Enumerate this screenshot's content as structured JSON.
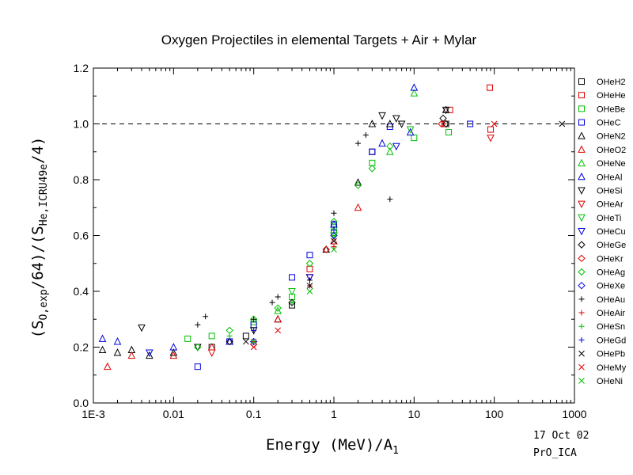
{
  "chart_data": {
    "type": "scatter",
    "title": "Oxygen Projectiles in elemental Targets + Air + Mylar",
    "xlabel": {
      "main": "Energy (MeV)/A",
      "sub": "1"
    },
    "ylabel": {
      "parts": [
        {
          "t": "(S",
          "k": "n"
        },
        {
          "t": "O,exp",
          "k": "sub"
        },
        {
          "t": "/64)/(S",
          "k": "n"
        },
        {
          "t": "He,ICRU49e",
          "k": "sub"
        },
        {
          "t": "/4)",
          "k": "n"
        }
      ]
    },
    "x_scale": "log",
    "xlim": [
      0.001,
      1000
    ],
    "ylim": [
      0.0,
      1.2
    ],
    "x_ticks": [
      {
        "v": 0.001,
        "label": "1E-3"
      },
      {
        "v": 0.01,
        "label": "0.01"
      },
      {
        "v": 0.1,
        "label": "0.1"
      },
      {
        "v": 1,
        "label": "1"
      },
      {
        "v": 10,
        "label": "10"
      },
      {
        "v": 100,
        "label": "100"
      },
      {
        "v": 1000,
        "label": "1000"
      }
    ],
    "y_ticks": [
      {
        "v": 0.0,
        "label": "0.0"
      },
      {
        "v": 0.2,
        "label": "0.2"
      },
      {
        "v": 0.4,
        "label": "0.4"
      },
      {
        "v": 0.6,
        "label": "0.6"
      },
      {
        "v": 0.8,
        "label": "0.8"
      },
      {
        "v": 1.0,
        "label": "1.0"
      },
      {
        "v": 1.2,
        "label": "1.2"
      }
    ],
    "reference_line": {
      "y": 1.0,
      "style": "dashed"
    },
    "legend_position": "right",
    "series": [
      {
        "name": "OHeH2",
        "marker": "square",
        "color": "#000000",
        "points": [
          [
            0.03,
            0.2
          ],
          [
            0.08,
            0.24
          ],
          [
            0.3,
            0.35
          ],
          [
            1.0,
            0.62
          ],
          [
            3.0,
            0.9
          ],
          [
            25,
            1.0
          ]
        ]
      },
      {
        "name": "OHeHe",
        "marker": "square",
        "color": "#e00000",
        "points": [
          [
            0.5,
            0.48
          ],
          [
            1.0,
            0.62
          ],
          [
            24,
            1.0
          ],
          [
            28,
            1.05
          ],
          [
            88,
            1.13
          ],
          [
            90,
            0.98
          ]
        ]
      },
      {
        "name": "OHeBe",
        "marker": "square",
        "color": "#00c000",
        "points": [
          [
            0.015,
            0.23
          ],
          [
            0.03,
            0.24
          ],
          [
            0.1,
            0.29
          ],
          [
            0.3,
            0.38
          ],
          [
            1.0,
            0.62
          ],
          [
            3.0,
            0.86
          ],
          [
            10,
            0.95
          ],
          [
            27,
            0.97
          ]
        ]
      },
      {
        "name": "OHeC",
        "marker": "square",
        "color": "#0000e0",
        "points": [
          [
            0.02,
            0.13
          ],
          [
            0.05,
            0.22
          ],
          [
            0.1,
            0.28
          ],
          [
            0.3,
            0.45
          ],
          [
            0.5,
            0.53
          ],
          [
            1.0,
            0.64
          ],
          [
            3.0,
            0.9
          ],
          [
            5.0,
            0.99
          ],
          [
            50,
            1.0
          ]
        ]
      },
      {
        "name": "OHeN2",
        "marker": "triangle-up",
        "color": "#000000",
        "points": [
          [
            0.0013,
            0.19
          ],
          [
            0.002,
            0.18
          ],
          [
            0.003,
            0.19
          ],
          [
            0.005,
            0.17
          ],
          [
            0.01,
            0.18
          ],
          [
            0.05,
            0.22
          ],
          [
            0.2,
            0.3
          ],
          [
            0.8,
            0.55
          ],
          [
            2.0,
            0.79
          ],
          [
            3.0,
            1.0
          ],
          [
            5.0,
            1.0
          ],
          [
            25,
            1.05
          ]
        ]
      },
      {
        "name": "OHeO2",
        "marker": "triangle-up",
        "color": "#e00000",
        "points": [
          [
            0.0015,
            0.13
          ],
          [
            0.003,
            0.17
          ],
          [
            0.01,
            0.17
          ],
          [
            0.03,
            0.2
          ],
          [
            0.2,
            0.3
          ],
          [
            1.0,
            0.58
          ],
          [
            2.0,
            0.7
          ]
        ]
      },
      {
        "name": "OHeNe",
        "marker": "triangle-up",
        "color": "#00c000",
        "points": [
          [
            0.2,
            0.33
          ],
          [
            1.0,
            0.62
          ],
          [
            5.0,
            0.9
          ],
          [
            10,
            1.11
          ]
        ]
      },
      {
        "name": "OHeAl",
        "marker": "triangle-up",
        "color": "#0000e0",
        "points": [
          [
            0.0013,
            0.23
          ],
          [
            0.002,
            0.22
          ],
          [
            0.01,
            0.2
          ],
          [
            0.05,
            0.22
          ],
          [
            1.0,
            0.64
          ],
          [
            4.0,
            0.93
          ],
          [
            10,
            1.13
          ],
          [
            9,
            0.97
          ]
        ]
      },
      {
        "name": "OHeSi",
        "marker": "triangle-down",
        "color": "#000000",
        "points": [
          [
            0.004,
            0.27
          ],
          [
            0.02,
            0.2
          ],
          [
            0.1,
            0.26
          ],
          [
            0.5,
            0.45
          ],
          [
            4.0,
            1.03
          ],
          [
            6.0,
            1.02
          ],
          [
            7.0,
            1.0
          ],
          [
            25,
            1.05
          ]
        ]
      },
      {
        "name": "OHeAr",
        "marker": "triangle-down",
        "color": "#e00000",
        "points": [
          [
            0.03,
            0.18
          ],
          [
            0.5,
            0.45
          ],
          [
            90,
            0.95
          ]
        ]
      },
      {
        "name": "OHeTi",
        "marker": "triangle-down",
        "color": "#00c000",
        "points": [
          [
            0.3,
            0.4
          ],
          [
            1.0,
            0.6
          ],
          [
            9,
            0.98
          ]
        ]
      },
      {
        "name": "OHeCu",
        "marker": "triangle-down",
        "color": "#0000e0",
        "points": [
          [
            0.005,
            0.18
          ],
          [
            0.5,
            0.45
          ],
          [
            6.0,
            0.92
          ]
        ]
      },
      {
        "name": "OHeGe",
        "marker": "diamond",
        "color": "#000000",
        "points": [
          [
            0.05,
            0.22
          ],
          [
            0.3,
            0.36
          ],
          [
            23,
            1.02
          ],
          [
            25,
            1.0
          ]
        ]
      },
      {
        "name": "OHeKr",
        "marker": "diamond",
        "color": "#e00000",
        "points": [
          [
            0.1,
            0.21
          ],
          [
            0.8,
            0.55
          ],
          [
            22,
            1.0
          ]
        ]
      },
      {
        "name": "OHeAg",
        "marker": "diamond",
        "color": "#00c000",
        "points": [
          [
            0.02,
            0.2
          ],
          [
            0.05,
            0.26
          ],
          [
            0.1,
            0.3
          ],
          [
            0.2,
            0.34
          ],
          [
            0.5,
            0.5
          ],
          [
            1.0,
            0.65
          ],
          [
            2.0,
            0.78
          ],
          [
            3.0,
            0.84
          ],
          [
            5.0,
            0.92
          ]
        ]
      },
      {
        "name": "OHeXe",
        "marker": "diamond",
        "color": "#0000e0",
        "points": [
          [
            0.1,
            0.22
          ],
          [
            1.0,
            0.6
          ]
        ]
      },
      {
        "name": "OHeAu",
        "marker": "plus",
        "color": "#000000",
        "points": [
          [
            0.02,
            0.28
          ],
          [
            0.025,
            0.31
          ],
          [
            0.1,
            0.3
          ],
          [
            0.17,
            0.36
          ],
          [
            0.2,
            0.38
          ],
          [
            0.5,
            0.44
          ],
          [
            1.0,
            0.68
          ],
          [
            2.0,
            0.93
          ],
          [
            2.5,
            0.96
          ],
          [
            5.0,
            0.73
          ]
        ]
      },
      {
        "name": "OHeAir",
        "marker": "plus",
        "color": "#e00000",
        "points": [
          [
            0.1,
            0.22
          ],
          [
            0.5,
            0.42
          ],
          [
            1.0,
            0.56
          ]
        ]
      },
      {
        "name": "OHeSn",
        "marker": "plus",
        "color": "#00c000",
        "points": [
          [
            0.05,
            0.24
          ],
          [
            0.3,
            0.36
          ],
          [
            1.0,
            0.6
          ]
        ]
      },
      {
        "name": "OHeGd",
        "marker": "plus",
        "color": "#0000e0",
        "points": [
          [
            0.1,
            0.26
          ],
          [
            1.0,
            0.62
          ]
        ]
      },
      {
        "name": "OHePb",
        "marker": "x",
        "color": "#000000",
        "points": [
          [
            0.08,
            0.22
          ],
          [
            0.5,
            0.42
          ],
          [
            1.0,
            0.58
          ],
          [
            700,
            1.0
          ]
        ]
      },
      {
        "name": "OHeMy",
        "marker": "x",
        "color": "#e00000",
        "points": [
          [
            0.1,
            0.2
          ],
          [
            0.2,
            0.26
          ],
          [
            100,
            1.0
          ]
        ]
      },
      {
        "name": "OHeNi",
        "marker": "x",
        "color": "#00c000",
        "points": [
          [
            0.1,
            0.22
          ],
          [
            0.5,
            0.4
          ],
          [
            1.0,
            0.55
          ]
        ]
      }
    ]
  },
  "footer": {
    "date": "17 Oct 02",
    "code": "PrO_ICA"
  }
}
